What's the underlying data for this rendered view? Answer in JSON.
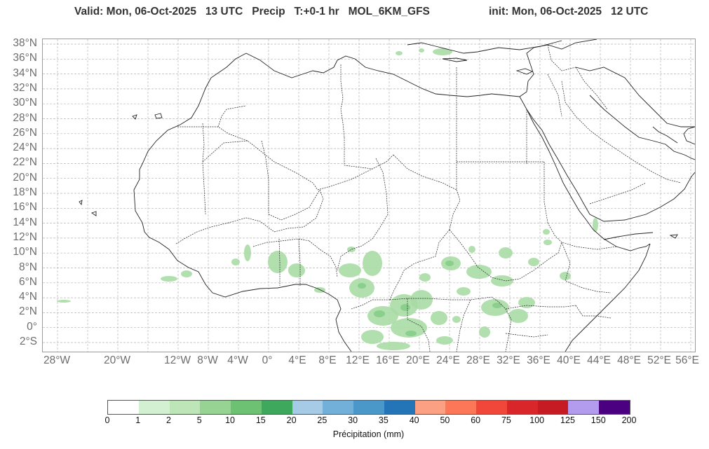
{
  "title": {
    "valid": "Valid: Mon, 06-Oct-2025   13 UTC   Precip   T:+0-1 hr   MOL_6KM_GFS",
    "init": "init: Mon, 06-Oct-2025   12 UTC"
  },
  "map": {
    "lat_labels": [
      "38°N",
      "36°N",
      "34°N",
      "32°N",
      "30°N",
      "28°N",
      "26°N",
      "24°N",
      "22°N",
      "20°N",
      "18°N",
      "16°N",
      "14°N",
      "12°N",
      "10°N",
      "8°N",
      "6°N",
      "4°N",
      "2°N",
      "0°",
      "2°S"
    ],
    "lon_labels": [
      "28°W",
      "20°W",
      "12°W",
      "8°W",
      "4°W",
      "0°",
      "4°E",
      "8°E",
      "12°E",
      "16°E",
      "20°E",
      "24°E",
      "28°E",
      "32°E",
      "36°E",
      "40°E",
      "44°E",
      "48°E",
      "52°E",
      "56°E"
    ],
    "land_line_color": "#222222",
    "grid_color": "#b5b5b5"
  },
  "colorbar": {
    "colors": [
      "#ffffff",
      "#d4f0d2",
      "#bde5b8",
      "#97d494",
      "#6cc172",
      "#3ea85c",
      "#a5cbe6",
      "#72afd9",
      "#4a97c9",
      "#2474b8",
      "#fca083",
      "#fb7758",
      "#f1473a",
      "#d9262a",
      "#c61b22",
      "#b39cee",
      "#4b0082"
    ],
    "ticks": [
      "0",
      "1",
      "2",
      "5",
      "10",
      "15",
      "20",
      "25",
      "30",
      "35",
      "40",
      "50",
      "60",
      "75",
      "100",
      "125",
      "150",
      "200"
    ],
    "title": "Précipitation (mm)"
  }
}
